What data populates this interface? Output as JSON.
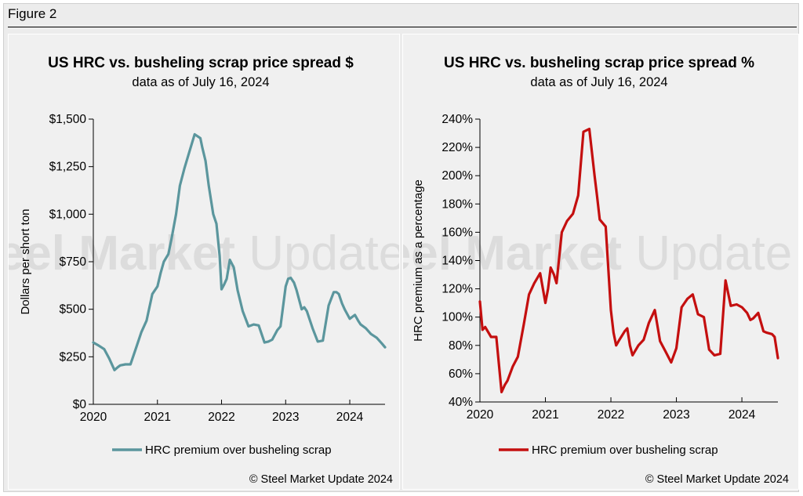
{
  "figure_label": "Figure 2",
  "watermark": {
    "strong": "Steel Market",
    "light": "Update"
  },
  "chart_data": [
    {
      "type": "line",
      "title": "US HRC vs. busheling scrap price spread $",
      "subtitle": "data as of July 16, 2024",
      "ylabel": "Dollars per short ton",
      "xlabel": "",
      "ylim": [
        0,
        1500
      ],
      "xlim": [
        2020.0,
        2024.55
      ],
      "y_ticks": [
        0,
        250,
        500,
        750,
        1000,
        1250,
        1500
      ],
      "y_tick_labels": [
        "$0",
        "$250",
        "$500",
        "$750",
        "$1,000",
        "$1,250",
        "$1,500"
      ],
      "x_ticks": [
        2020,
        2021,
        2022,
        2023,
        2024
      ],
      "x_tick_labels": [
        "2020",
        "2021",
        "2022",
        "2023",
        "2024"
      ],
      "grid": false,
      "legend_position": "bottom",
      "credit": "© Steel Market Update 2024",
      "series": [
        {
          "name": "HRC premium over busheling scrap",
          "color": "#5b969d",
          "x": [
            2020.0,
            2020.08,
            2020.17,
            2020.25,
            2020.33,
            2020.38,
            2020.42,
            2020.5,
            2020.58,
            2020.67,
            2020.75,
            2020.83,
            2020.92,
            2021.0,
            2021.05,
            2021.1,
            2021.17,
            2021.22,
            2021.29,
            2021.35,
            2021.42,
            2021.5,
            2021.58,
            2021.67,
            2021.7,
            2021.75,
            2021.8,
            2021.87,
            2021.92,
            2021.97,
            2022.0,
            2022.04,
            2022.08,
            2022.13,
            2022.19,
            2022.25,
            2022.33,
            2022.42,
            2022.5,
            2022.58,
            2022.67,
            2022.73,
            2022.79,
            2022.87,
            2022.92,
            2023.0,
            2023.04,
            2023.08,
            2023.13,
            2023.17,
            2023.25,
            2023.29,
            2023.33,
            2023.42,
            2023.5,
            2023.58,
            2023.67,
            2023.75,
            2023.79,
            2023.83,
            2023.88,
            2023.92,
            2024.0,
            2024.08,
            2024.13,
            2024.17,
            2024.25,
            2024.33,
            2024.42,
            2024.5,
            2024.55
          ],
          "y": [
            325,
            310,
            290,
            240,
            180,
            195,
            205,
            210,
            210,
            300,
            380,
            440,
            580,
            620,
            690,
            750,
            790,
            870,
            1000,
            1150,
            1240,
            1330,
            1420,
            1400,
            1350,
            1280,
            1150,
            1000,
            950,
            780,
            605,
            630,
            660,
            760,
            720,
            600,
            490,
            410,
            420,
            415,
            325,
            330,
            340,
            390,
            410,
            620,
            660,
            665,
            640,
            600,
            500,
            510,
            490,
            400,
            330,
            335,
            520,
            590,
            590,
            580,
            530,
            500,
            450,
            470,
            440,
            420,
            400,
            370,
            350,
            320,
            300
          ]
        }
      ]
    },
    {
      "type": "line",
      "title": "US HRC vs. busheling scrap price spread %",
      "subtitle": "data as of July 16, 2024",
      "ylabel": "HRC premium as a percentage",
      "xlabel": "",
      "ylim": [
        40,
        240
      ],
      "xlim": [
        2020.0,
        2024.55
      ],
      "y_ticks": [
        40,
        60,
        80,
        100,
        120,
        140,
        160,
        180,
        200,
        220,
        240
      ],
      "y_tick_labels": [
        "40%",
        "60%",
        "80%",
        "100%",
        "120%",
        "140%",
        "160%",
        "180%",
        "200%",
        "220%",
        "240%"
      ],
      "x_ticks": [
        2020,
        2021,
        2022,
        2023,
        2024
      ],
      "x_tick_labels": [
        "2020",
        "2021",
        "2022",
        "2023",
        "2024"
      ],
      "grid": false,
      "legend_position": "bottom",
      "credit": "© Steel Market Update 2024",
      "series": [
        {
          "name": "HRC premium over busheling scrap",
          "color": "#c40f0f",
          "x": [
            2020.0,
            2020.04,
            2020.08,
            2020.17,
            2020.25,
            2020.33,
            2020.38,
            2020.42,
            2020.5,
            2020.58,
            2020.67,
            2020.75,
            2020.83,
            2020.92,
            2021.0,
            2021.04,
            2021.08,
            2021.13,
            2021.17,
            2021.25,
            2021.33,
            2021.42,
            2021.5,
            2021.58,
            2021.67,
            2021.75,
            2021.79,
            2021.83,
            2021.92,
            2022.0,
            2022.04,
            2022.08,
            2022.13,
            2022.21,
            2022.25,
            2022.29,
            2022.33,
            2022.42,
            2022.5,
            2022.58,
            2022.67,
            2022.75,
            2022.83,
            2022.92,
            2023.0,
            2023.08,
            2023.17,
            2023.25,
            2023.33,
            2023.42,
            2023.5,
            2023.58,
            2023.67,
            2023.75,
            2023.83,
            2023.92,
            2024.0,
            2024.08,
            2024.13,
            2024.17,
            2024.25,
            2024.33,
            2024.38,
            2024.46,
            2024.5,
            2024.55
          ],
          "y": [
            111,
            91,
            93,
            86,
            86,
            47,
            52,
            55,
            65,
            72,
            95,
            116,
            124,
            131,
            110,
            120,
            135,
            130,
            124,
            160,
            168,
            173,
            186,
            231,
            233,
            200,
            185,
            169,
            164,
            105,
            89,
            80,
            84,
            90,
            92,
            80,
            73,
            80,
            84,
            96,
            105,
            83,
            76,
            68,
            78,
            107,
            113,
            116,
            102,
            100,
            77,
            73,
            74,
            126,
            108,
            109,
            107,
            103,
            98,
            99,
            103,
            90,
            89,
            88,
            86,
            71
          ]
        }
      ]
    }
  ]
}
